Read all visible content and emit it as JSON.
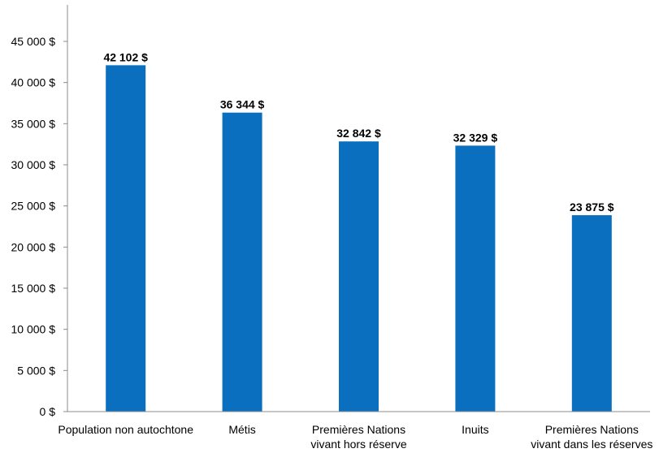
{
  "chart_data": {
    "type": "bar",
    "title": "",
    "xlabel": "",
    "ylabel": "",
    "ylim": [
      0,
      45000
    ],
    "ytick_step": 5000,
    "ytick_labels": [
      "0 $",
      "5 000 $",
      "10 000 $",
      "15 000 $",
      "20 000 $",
      "25 000 $",
      "30 000 $",
      "35 000 $",
      "40 000 $",
      "45 000 $"
    ],
    "grid": false,
    "bar_color": "#0a6fbf",
    "categories": [
      [
        "Population non autochtone"
      ],
      [
        "Métis"
      ],
      [
        "Premières Nations",
        "vivant hors réserve"
      ],
      [
        "Inuits"
      ],
      [
        "Premières Nations",
        "vivant dans les réserves"
      ]
    ],
    "values": [
      42102,
      36344,
      32842,
      32329,
      23875
    ],
    "value_labels": [
      "42 102 $",
      "36 344 $",
      "32 842 $",
      "32 329 $",
      "23 875 $"
    ]
  }
}
